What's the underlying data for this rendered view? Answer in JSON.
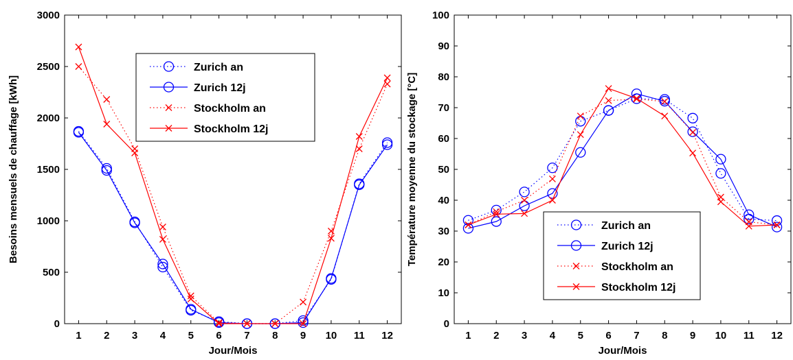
{
  "chart_data": [
    {
      "type": "line",
      "xlabel": "Jour/Mois",
      "ylabel": "Besoins mensuels de chauffage [kWh]",
      "xlim": [
        0.5,
        12.5
      ],
      "ylim": [
        0,
        3000
      ],
      "xticks": [
        1,
        2,
        3,
        4,
        5,
        6,
        7,
        8,
        9,
        10,
        11,
        12
      ],
      "yticks": [
        0,
        500,
        1000,
        1500,
        2000,
        2500,
        3000
      ],
      "legend_position": "top-center",
      "series": [
        {
          "name": "Zurich an",
          "color": "#0000ff",
          "style": "dotted",
          "marker": "circle",
          "x": [
            1,
            2,
            3,
            4,
            5,
            6,
            7,
            8,
            9,
            10,
            11,
            12
          ],
          "values": [
            1870,
            1510,
            990,
            550,
            130,
            20,
            0,
            0,
            30,
            430,
            1360,
            1760
          ]
        },
        {
          "name": "Zurich 12j",
          "color": "#0000ff",
          "style": "solid",
          "marker": "circle",
          "x": [
            1,
            2,
            3,
            4,
            5,
            6,
            7,
            8,
            9,
            10,
            11,
            12
          ],
          "values": [
            1860,
            1490,
            980,
            580,
            140,
            10,
            0,
            0,
            10,
            440,
            1350,
            1740
          ]
        },
        {
          "name": "Stockholm an",
          "color": "#ff0000",
          "style": "dotted",
          "marker": "x",
          "x": [
            1,
            2,
            3,
            4,
            5,
            6,
            7,
            8,
            9,
            10,
            11,
            12
          ],
          "values": [
            2500,
            2180,
            1700,
            940,
            270,
            10,
            0,
            0,
            210,
            900,
            1700,
            2330
          ]
        },
        {
          "name": "Stockholm 12j",
          "color": "#ff0000",
          "style": "solid",
          "marker": "x",
          "x": [
            1,
            2,
            3,
            4,
            5,
            6,
            7,
            8,
            9,
            10,
            11,
            12
          ],
          "values": [
            2690,
            1940,
            1660,
            820,
            240,
            0,
            0,
            0,
            0,
            830,
            1820,
            2390
          ]
        }
      ]
    },
    {
      "type": "line",
      "xlabel": "Jour/Mois",
      "ylabel": "Température moyenne du stockage [°C]",
      "xlim": [
        0.5,
        12.5
      ],
      "ylim": [
        0,
        100
      ],
      "xticks": [
        1,
        2,
        3,
        4,
        5,
        6,
        7,
        8,
        9,
        10,
        11,
        12
      ],
      "yticks": [
        0,
        10,
        20,
        30,
        40,
        50,
        60,
        70,
        80,
        90,
        100
      ],
      "legend_position": "bottom-center",
      "series": [
        {
          "name": "Zurich an",
          "color": "#0000ff",
          "style": "dotted",
          "marker": "circle",
          "x": [
            1,
            2,
            3,
            4,
            5,
            6,
            7,
            8,
            9,
            10,
            11,
            12
          ],
          "values": [
            33.5,
            36.8,
            42.7,
            50.5,
            65.6,
            69.1,
            72.9,
            72.7,
            66.6,
            48.7,
            33.9,
            33.4
          ]
        },
        {
          "name": "Zurich 12j",
          "color": "#0000ff",
          "style": "solid",
          "marker": "circle",
          "x": [
            1,
            2,
            3,
            4,
            5,
            6,
            7,
            8,
            9,
            10,
            11,
            12
          ],
          "values": [
            30.9,
            33.1,
            38.2,
            42.2,
            55.5,
            69.1,
            74.5,
            72.1,
            62.2,
            53.3,
            35.3,
            31.3
          ]
        },
        {
          "name": "Stockholm an",
          "color": "#ff0000",
          "style": "dotted",
          "marker": "x",
          "x": [
            1,
            2,
            3,
            4,
            5,
            6,
            7,
            8,
            9,
            10,
            11,
            12
          ],
          "values": [
            32.0,
            36.3,
            40.0,
            46.9,
            67.3,
            72.3,
            72.8,
            72.0,
            62.0,
            41.0,
            33.0,
            32.0
          ]
        },
        {
          "name": "Stockholm 12j",
          "color": "#ff0000",
          "style": "solid",
          "marker": "x",
          "x": [
            1,
            2,
            3,
            4,
            5,
            6,
            7,
            8,
            9,
            10,
            11,
            12
          ],
          "values": [
            32.0,
            35.5,
            35.7,
            40.0,
            61.3,
            76.2,
            73.0,
            67.3,
            55.3,
            39.5,
            31.6,
            32.0
          ]
        }
      ]
    }
  ]
}
